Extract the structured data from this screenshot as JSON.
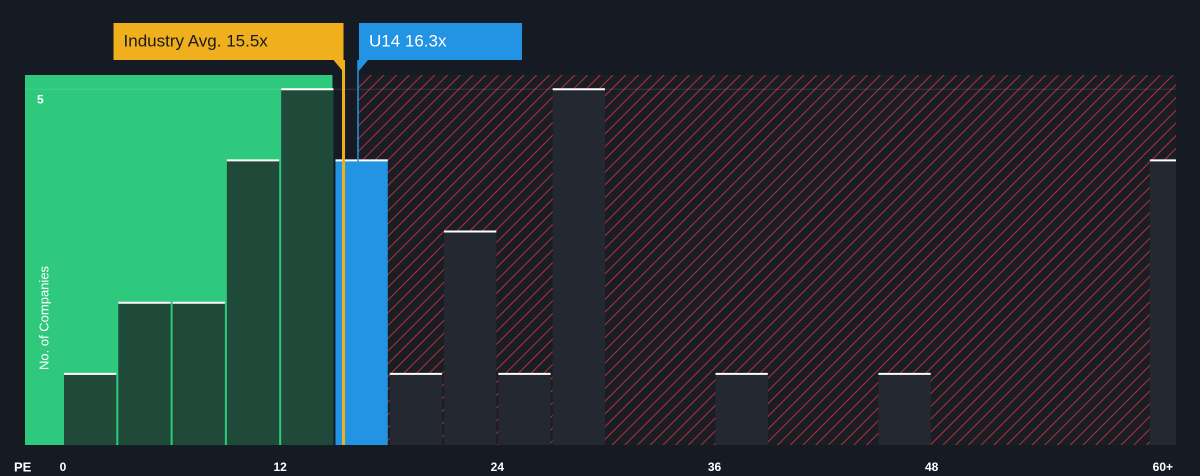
{
  "chart_data": {
    "type": "histogram",
    "x_label": "PE",
    "y_label": "No. of Companies",
    "bins": [
      0,
      3,
      6,
      9,
      12,
      15,
      18,
      21,
      24,
      27,
      30,
      33,
      36,
      39,
      42,
      45,
      48,
      51,
      54,
      57,
      60,
      63
    ],
    "values": [
      1,
      2,
      2,
      4,
      5,
      4,
      1,
      3,
      1,
      5,
      0,
      0,
      1,
      0,
      0,
      1,
      0,
      0,
      0,
      0,
      4
    ],
    "xlim": [
      -2.1,
      61.5
    ],
    "ylim": [
      0,
      5.2
    ],
    "xticks": [
      0,
      12,
      24,
      36,
      48,
      {
        "value": 60,
        "label": "60+"
      }
    ],
    "yticks": [
      5
    ],
    "annotations": [
      {
        "label": "Industry Avg. 15.5x",
        "value": 15.5,
        "color": "#f0b01d"
      },
      {
        "label": "U14 16.3x",
        "value": 16.3,
        "color": "#2394e4"
      }
    ]
  }
}
